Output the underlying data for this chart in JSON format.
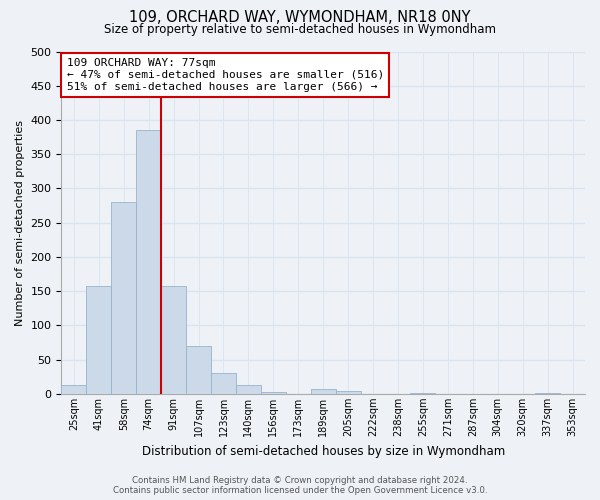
{
  "title": "109, ORCHARD WAY, WYMONDHAM, NR18 0NY",
  "subtitle": "Size of property relative to semi-detached houses in Wymondham",
  "bar_labels": [
    "25sqm",
    "41sqm",
    "58sqm",
    "74sqm",
    "91sqm",
    "107sqm",
    "123sqm",
    "140sqm",
    "156sqm",
    "173sqm",
    "189sqm",
    "205sqm",
    "222sqm",
    "238sqm",
    "255sqm",
    "271sqm",
    "287sqm",
    "304sqm",
    "320sqm",
    "337sqm",
    "353sqm"
  ],
  "bar_values": [
    13,
    158,
    280,
    385,
    158,
    70,
    30,
    13,
    3,
    0,
    7,
    4,
    0,
    0,
    2,
    0,
    0,
    0,
    0,
    2,
    0
  ],
  "bar_color": "#ccd9e8",
  "bar_edge_color": "#99b3cc",
  "vline_color": "#cc0000",
  "vline_bar_index": 4,
  "ylim": [
    0,
    500
  ],
  "yticks": [
    0,
    50,
    100,
    150,
    200,
    250,
    300,
    350,
    400,
    450,
    500
  ],
  "ylabel": "Number of semi-detached properties",
  "xlabel": "Distribution of semi-detached houses by size in Wymondham",
  "annotation_title": "109 ORCHARD WAY: 77sqm",
  "annotation_line1": "← 47% of semi-detached houses are smaller (516)",
  "annotation_line2": "51% of semi-detached houses are larger (566) →",
  "annotation_box_color": "#ffffff",
  "annotation_box_edge": "#cc0000",
  "footer_line1": "Contains HM Land Registry data © Crown copyright and database right 2024.",
  "footer_line2": "Contains public sector information licensed under the Open Government Licence v3.0.",
  "background_color": "#eef2f7",
  "grid_color": "#d8e4f0",
  "plot_bg_color": "#eef2f7"
}
